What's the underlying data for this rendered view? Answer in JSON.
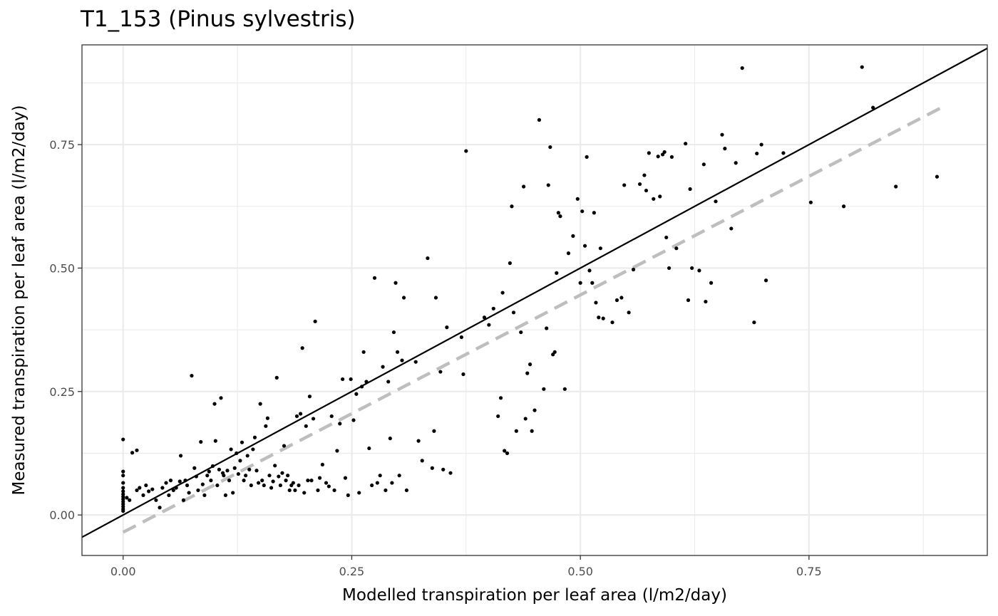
{
  "chart_data": {
    "type": "scatter",
    "title": "T1_153 (Pinus sylvestris)",
    "xlabel": "Modelled transpiration per leaf area (l/m2/day)",
    "ylabel": "Measured transpiration per leaf area (l/m2/day)",
    "xlim": [
      -0.045,
      0.945
    ],
    "ylim": [
      -0.082,
      0.952
    ],
    "xticks": [
      0.0,
      0.25,
      0.5,
      0.75
    ],
    "xtick_labels": [
      "0.00",
      "0.25",
      "0.50",
      "0.75"
    ],
    "yticks": [
      0.0,
      0.25,
      0.5,
      0.75
    ],
    "ytick_labels": [
      "0.00",
      "0.25",
      "0.50",
      "0.75"
    ],
    "grid": true,
    "legend": "none",
    "reference_line": {
      "style": "solid",
      "color": "#000000",
      "slope": 1,
      "intercept": 0
    },
    "fit_line": {
      "style": "dashed",
      "color": "#bebebe",
      "x": [
        0.0,
        0.9
      ],
      "y": [
        -0.035,
        0.83
      ]
    },
    "colors": {
      "points": "#000000",
      "grid": "#ebebeb",
      "border": "#333333"
    },
    "points": [
      [
        0.0,
        0.153
      ],
      [
        0.0,
        0.088
      ],
      [
        0.0,
        0.08
      ],
      [
        0.0,
        0.065
      ],
      [
        0.0,
        0.055
      ],
      [
        0.0,
        0.048
      ],
      [
        0.0,
        0.042
      ],
      [
        0.0,
        0.037
      ],
      [
        0.0,
        0.032
      ],
      [
        0.0,
        0.027
      ],
      [
        0.0,
        0.022
      ],
      [
        0.0,
        0.017
      ],
      [
        0.0,
        0.012
      ],
      [
        0.0,
        0.008
      ],
      [
        0.004,
        0.035
      ],
      [
        0.007,
        0.03
      ],
      [
        0.01,
        0.126
      ],
      [
        0.015,
        0.131
      ],
      [
        0.015,
        0.05
      ],
      [
        0.018,
        0.055
      ],
      [
        0.022,
        0.04
      ],
      [
        0.025,
        0.06
      ],
      [
        0.028,
        0.048
      ],
      [
        0.032,
        0.052
      ],
      [
        0.036,
        0.03
      ],
      [
        0.04,
        0.015
      ],
      [
        0.043,
        0.055
      ],
      [
        0.047,
        0.065
      ],
      [
        0.05,
        0.04
      ],
      [
        0.052,
        0.07
      ],
      [
        0.055,
        0.05
      ],
      [
        0.058,
        0.055
      ],
      [
        0.062,
        0.068
      ],
      [
        0.063,
        0.12
      ],
      [
        0.066,
        0.03
      ],
      [
        0.068,
        0.07
      ],
      [
        0.07,
        0.06
      ],
      [
        0.072,
        0.045
      ],
      [
        0.075,
        0.282
      ],
      [
        0.078,
        0.095
      ],
      [
        0.08,
        0.078
      ],
      [
        0.082,
        0.05
      ],
      [
        0.085,
        0.148
      ],
      [
        0.087,
        0.062
      ],
      [
        0.089,
        0.04
      ],
      [
        0.092,
        0.08
      ],
      [
        0.094,
        0.088
      ],
      [
        0.096,
        0.07
      ],
      [
        0.098,
        0.099
      ],
      [
        0.1,
        0.225
      ],
      [
        0.101,
        0.15
      ],
      [
        0.103,
        0.06
      ],
      [
        0.105,
        0.092
      ],
      [
        0.107,
        0.237
      ],
      [
        0.109,
        0.085
      ],
      [
        0.11,
        0.08
      ],
      [
        0.112,
        0.04
      ],
      [
        0.114,
        0.09
      ],
      [
        0.116,
        0.07
      ],
      [
        0.118,
        0.133
      ],
      [
        0.12,
        0.045
      ],
      [
        0.122,
        0.095
      ],
      [
        0.124,
        0.125
      ],
      [
        0.126,
        0.083
      ],
      [
        0.128,
        0.11
      ],
      [
        0.13,
        0.147
      ],
      [
        0.132,
        0.07
      ],
      [
        0.134,
        0.08
      ],
      [
        0.136,
        0.12
      ],
      [
        0.138,
        0.092
      ],
      [
        0.14,
        0.06
      ],
      [
        0.142,
        0.133
      ],
      [
        0.144,
        0.157
      ],
      [
        0.146,
        0.09
      ],
      [
        0.148,
        0.065
      ],
      [
        0.15,
        0.225
      ],
      [
        0.152,
        0.07
      ],
      [
        0.154,
        0.06
      ],
      [
        0.156,
        0.18
      ],
      [
        0.158,
        0.196
      ],
      [
        0.16,
        0.08
      ],
      [
        0.162,
        0.055
      ],
      [
        0.164,
        0.068
      ],
      [
        0.166,
        0.1
      ],
      [
        0.168,
        0.278
      ],
      [
        0.17,
        0.078
      ],
      [
        0.172,
        0.06
      ],
      [
        0.174,
        0.085
      ],
      [
        0.176,
        0.14
      ],
      [
        0.178,
        0.07
      ],
      [
        0.18,
        0.08
      ],
      [
        0.182,
        0.05
      ],
      [
        0.184,
        0.06
      ],
      [
        0.186,
        0.065
      ],
      [
        0.188,
        0.05
      ],
      [
        0.19,
        0.2
      ],
      [
        0.192,
        0.06
      ],
      [
        0.194,
        0.205
      ],
      [
        0.196,
        0.338
      ],
      [
        0.198,
        0.045
      ],
      [
        0.2,
        0.18
      ],
      [
        0.202,
        0.07
      ],
      [
        0.204,
        0.24
      ],
      [
        0.206,
        0.07
      ],
      [
        0.208,
        0.195
      ],
      [
        0.21,
        0.392
      ],
      [
        0.213,
        0.05
      ],
      [
        0.215,
        0.075
      ],
      [
        0.218,
        0.102
      ],
      [
        0.222,
        0.065
      ],
      [
        0.225,
        0.058
      ],
      [
        0.228,
        0.2
      ],
      [
        0.231,
        0.05
      ],
      [
        0.234,
        0.13
      ],
      [
        0.237,
        0.185
      ],
      [
        0.24,
        0.275
      ],
      [
        0.243,
        0.075
      ],
      [
        0.246,
        0.04
      ],
      [
        0.249,
        0.275
      ],
      [
        0.252,
        0.192
      ],
      [
        0.255,
        0.245
      ],
      [
        0.258,
        0.045
      ],
      [
        0.261,
        0.26
      ],
      [
        0.263,
        0.33
      ],
      [
        0.266,
        0.27
      ],
      [
        0.269,
        0.135
      ],
      [
        0.272,
        0.06
      ],
      [
        0.275,
        0.48
      ],
      [
        0.278,
        0.065
      ],
      [
        0.281,
        0.08
      ],
      [
        0.284,
        0.3
      ],
      [
        0.287,
        0.05
      ],
      [
        0.29,
        0.27
      ],
      [
        0.292,
        0.155
      ],
      [
        0.294,
        0.065
      ],
      [
        0.296,
        0.37
      ],
      [
        0.298,
        0.47
      ],
      [
        0.3,
        0.33
      ],
      [
        0.302,
        0.08
      ],
      [
        0.305,
        0.313
      ],
      [
        0.307,
        0.44
      ],
      [
        0.31,
        0.05
      ],
      [
        0.32,
        0.31
      ],
      [
        0.323,
        0.15
      ],
      [
        0.327,
        0.11
      ],
      [
        0.333,
        0.52
      ],
      [
        0.338,
        0.095
      ],
      [
        0.34,
        0.17
      ],
      [
        0.342,
        0.44
      ],
      [
        0.347,
        0.29
      ],
      [
        0.35,
        0.092
      ],
      [
        0.354,
        0.38
      ],
      [
        0.358,
        0.085
      ],
      [
        0.37,
        0.36
      ],
      [
        0.372,
        0.285
      ],
      [
        0.375,
        0.737
      ],
      [
        0.395,
        0.4
      ],
      [
        0.4,
        0.385
      ],
      [
        0.405,
        0.418
      ],
      [
        0.41,
        0.2
      ],
      [
        0.413,
        0.237
      ],
      [
        0.415,
        0.45
      ],
      [
        0.417,
        0.13
      ],
      [
        0.42,
        0.125
      ],
      [
        0.423,
        0.51
      ],
      [
        0.425,
        0.625
      ],
      [
        0.427,
        0.41
      ],
      [
        0.43,
        0.17
      ],
      [
        0.435,
        0.37
      ],
      [
        0.438,
        0.665
      ],
      [
        0.44,
        0.195
      ],
      [
        0.442,
        0.287
      ],
      [
        0.445,
        0.305
      ],
      [
        0.447,
        0.17
      ],
      [
        0.45,
        0.212
      ],
      [
        0.455,
        0.8
      ],
      [
        0.46,
        0.255
      ],
      [
        0.463,
        0.378
      ],
      [
        0.465,
        0.668
      ],
      [
        0.467,
        0.745
      ],
      [
        0.47,
        0.325
      ],
      [
        0.472,
        0.33
      ],
      [
        0.474,
        0.49
      ],
      [
        0.476,
        0.612
      ],
      [
        0.478,
        0.605
      ],
      [
        0.483,
        0.255
      ],
      [
        0.487,
        0.53
      ],
      [
        0.492,
        0.565
      ],
      [
        0.497,
        0.64
      ],
      [
        0.5,
        0.47
      ],
      [
        0.502,
        0.615
      ],
      [
        0.505,
        0.545
      ],
      [
        0.507,
        0.725
      ],
      [
        0.51,
        0.495
      ],
      [
        0.513,
        0.47
      ],
      [
        0.515,
        0.612
      ],
      [
        0.517,
        0.43
      ],
      [
        0.52,
        0.4
      ],
      [
        0.522,
        0.54
      ],
      [
        0.525,
        0.398
      ],
      [
        0.535,
        0.39
      ],
      [
        0.54,
        0.435
      ],
      [
        0.545,
        0.44
      ],
      [
        0.548,
        0.668
      ],
      [
        0.553,
        0.41
      ],
      [
        0.558,
        0.497
      ],
      [
        0.565,
        0.67
      ],
      [
        0.57,
        0.688
      ],
      [
        0.572,
        0.657
      ],
      [
        0.575,
        0.733
      ],
      [
        0.58,
        0.64
      ],
      [
        0.585,
        0.726
      ],
      [
        0.587,
        0.645
      ],
      [
        0.59,
        0.73
      ],
      [
        0.592,
        0.735
      ],
      [
        0.594,
        0.562
      ],
      [
        0.597,
        0.5
      ],
      [
        0.6,
        0.725
      ],
      [
        0.605,
        0.54
      ],
      [
        0.615,
        0.752
      ],
      [
        0.618,
        0.435
      ],
      [
        0.62,
        0.66
      ],
      [
        0.622,
        0.5
      ],
      [
        0.63,
        0.495
      ],
      [
        0.635,
        0.71
      ],
      [
        0.637,
        0.432
      ],
      [
        0.643,
        0.47
      ],
      [
        0.648,
        0.635
      ],
      [
        0.655,
        0.77
      ],
      [
        0.658,
        0.742
      ],
      [
        0.665,
        0.58
      ],
      [
        0.67,
        0.713
      ],
      [
        0.677,
        0.905
      ],
      [
        0.69,
        0.39
      ],
      [
        0.693,
        0.732
      ],
      [
        0.698,
        0.75
      ],
      [
        0.703,
        0.475
      ],
      [
        0.722,
        0.733
      ],
      [
        0.752,
        0.633
      ],
      [
        0.788,
        0.625
      ],
      [
        0.808,
        0.907
      ],
      [
        0.82,
        0.825
      ],
      [
        0.845,
        0.665
      ],
      [
        0.89,
        0.685
      ]
    ]
  }
}
